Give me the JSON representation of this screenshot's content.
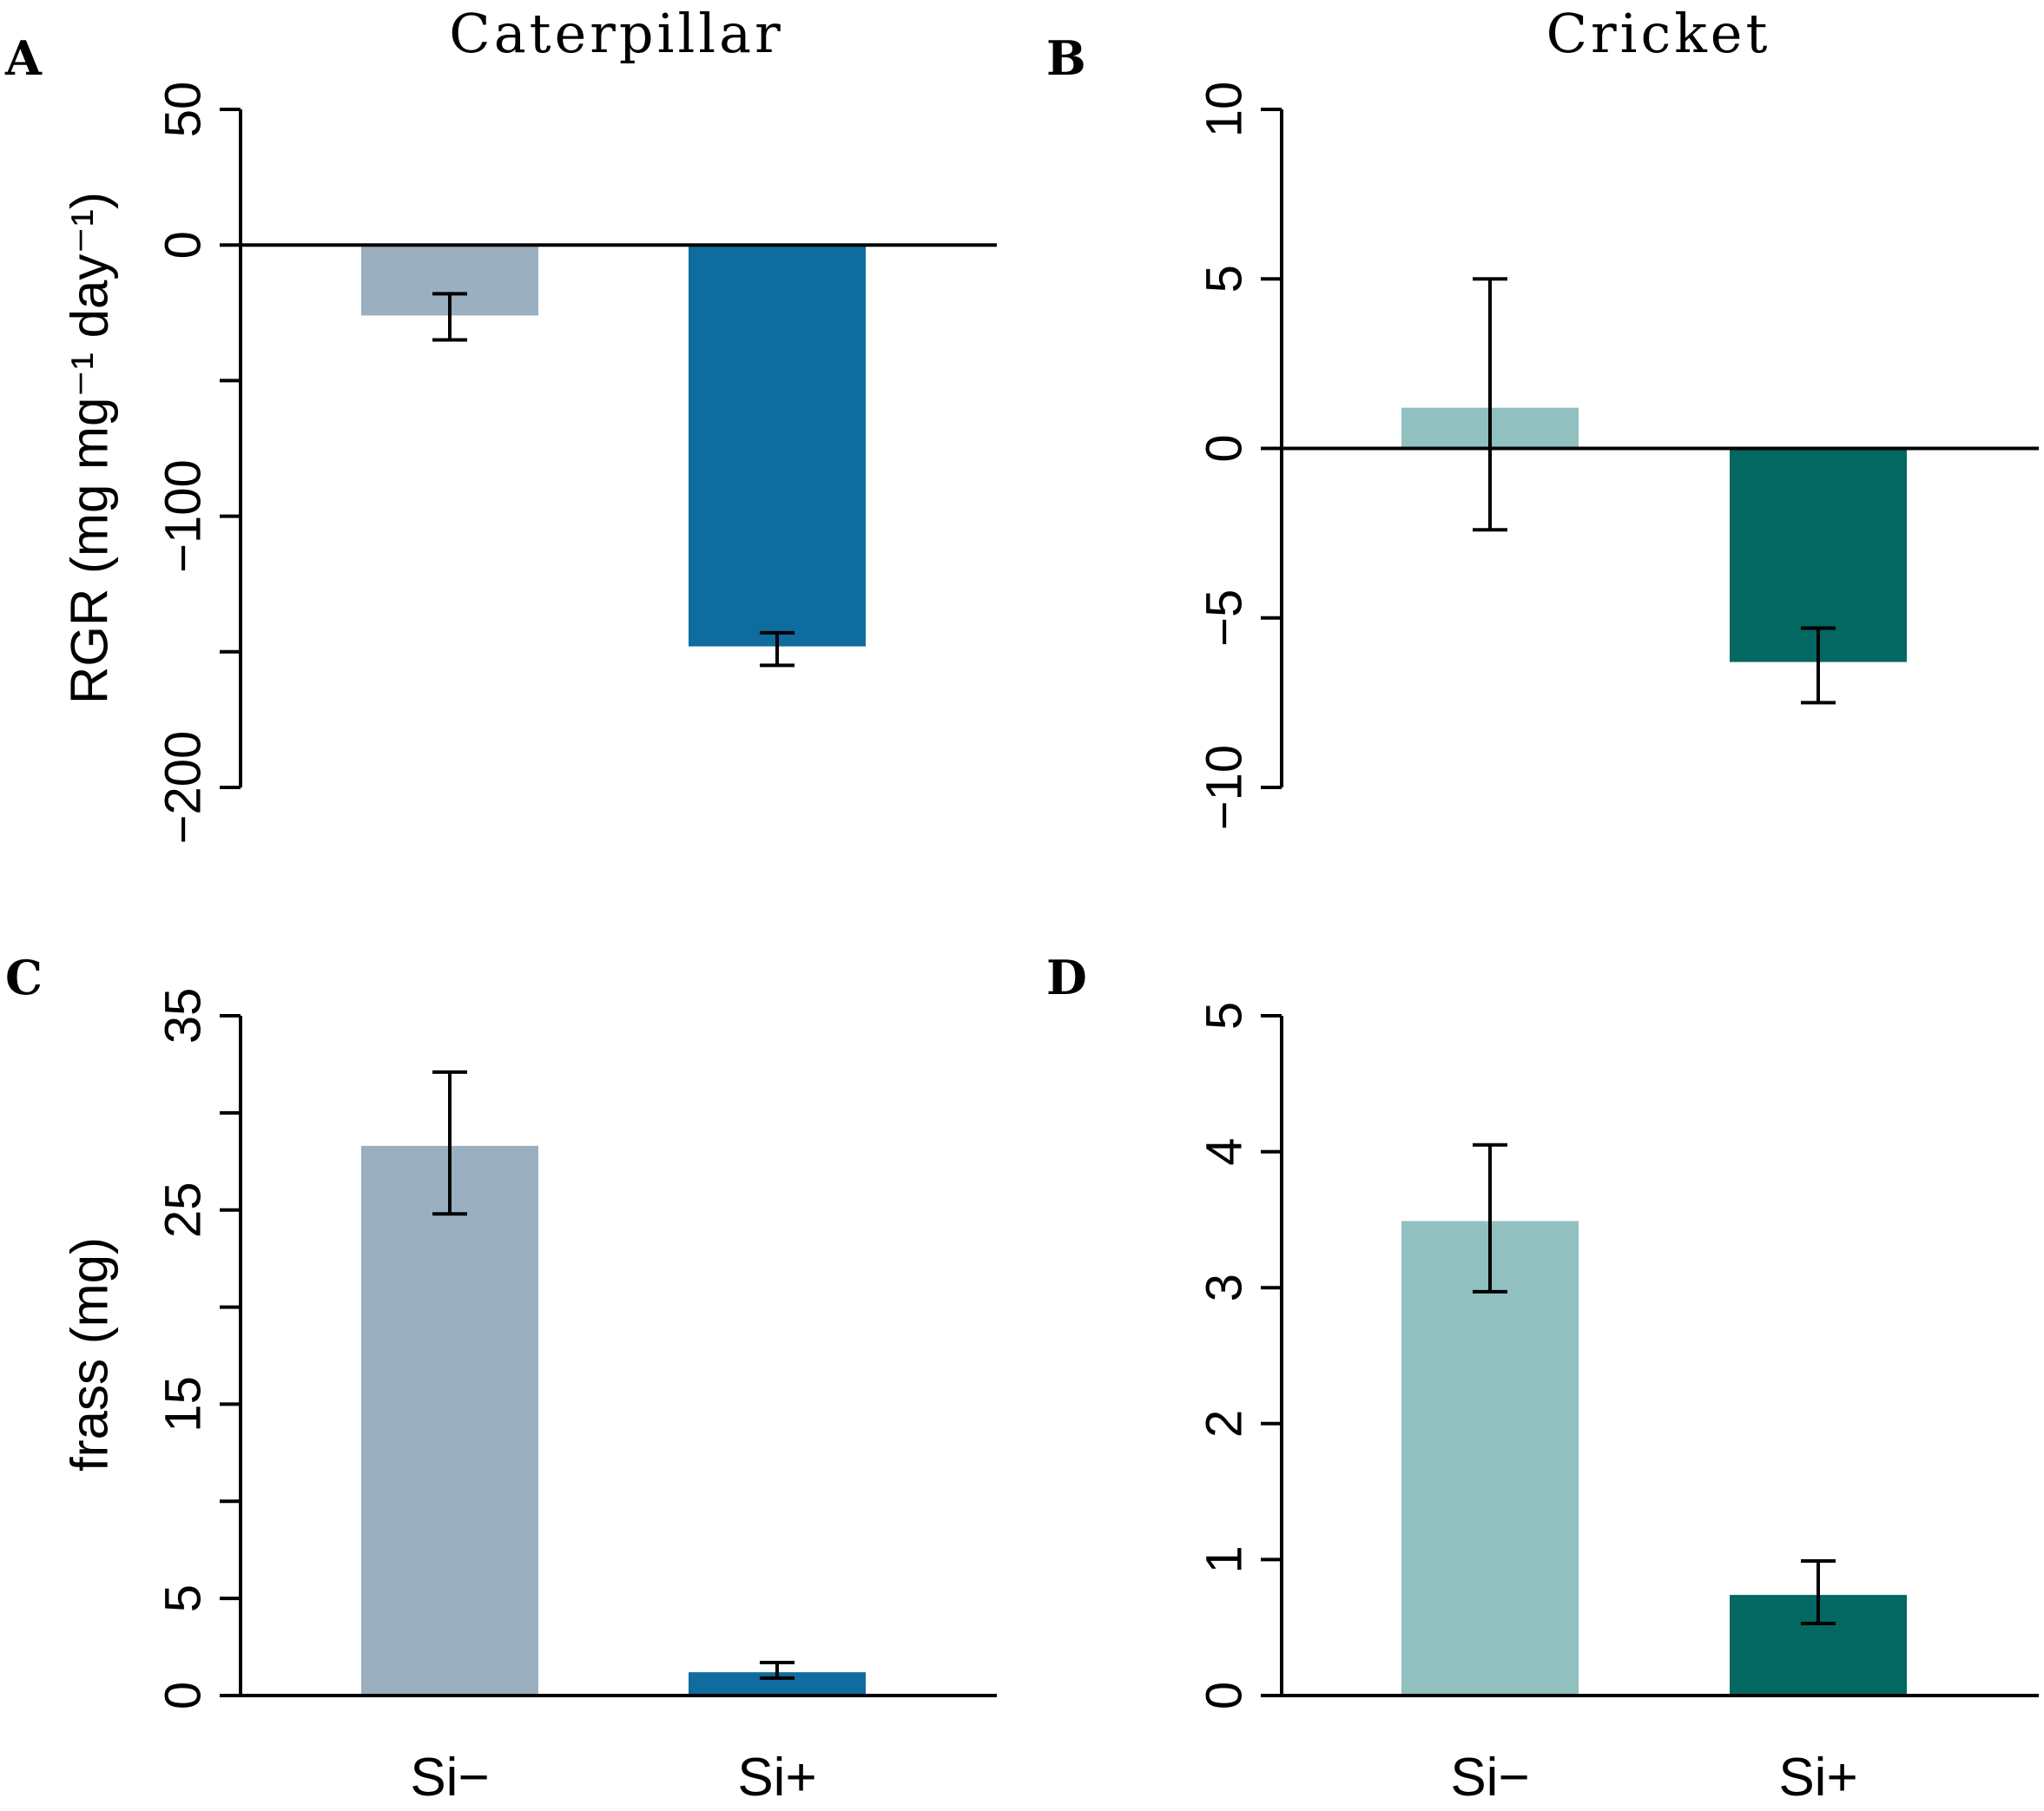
{
  "chart_data": [
    {
      "panel": "A",
      "type": "bar",
      "title": "Caterpillar",
      "categories": [
        "Si−",
        "Si+"
      ],
      "values": [
        -26,
        -148
      ],
      "errors": [
        [
          -18,
          -35
        ],
        [
          -143,
          -155
        ]
      ],
      "colors": [
        "#9aafbf",
        "#0f6c9e"
      ],
      "ylabel": "RGR (mg mg⁻¹ day⁻¹)",
      "ylim": [
        -200,
        50
      ],
      "yticks": [
        50,
        0,
        -50,
        -100,
        -150,
        -200
      ],
      "ytick_labels": [
        "50",
        "0",
        "",
        "−100",
        "",
        "−200"
      ],
      "zero_line": true,
      "show_xlabels": false
    },
    {
      "panel": "B",
      "type": "bar",
      "title": "Cricket",
      "categories": [
        "Si−",
        "Si+"
      ],
      "values": [
        1.2,
        -6.3
      ],
      "errors": [
        [
          5.0,
          -2.4
        ],
        [
          -5.3,
          -7.5
        ]
      ],
      "colors": [
        "#91c0c0",
        "#036762"
      ],
      "ylabel": "",
      "ylim": [
        -10,
        10
      ],
      "yticks": [
        10,
        5,
        0,
        -5,
        -10
      ],
      "ytick_labels": [
        "10",
        "5",
        "0",
        "−5",
        "−10"
      ],
      "zero_line": true,
      "show_xlabels": false
    },
    {
      "panel": "C",
      "type": "bar",
      "title": "",
      "categories": [
        "Si−",
        "Si+"
      ],
      "values": [
        28.3,
        1.2
      ],
      "errors": [
        [
          32.1,
          24.8
        ],
        [
          1.7,
          0.9
        ]
      ],
      "colors": [
        "#9aafbf",
        "#0f6c9e"
      ],
      "ylabel": "frass (mg)",
      "ylim": [
        0,
        35
      ],
      "yticks": [
        35,
        30,
        25,
        20,
        15,
        10,
        5,
        0
      ],
      "ytick_labels": [
        "35",
        "",
        "25",
        "",
        "15",
        "",
        "5",
        "0"
      ],
      "zero_line": false,
      "show_xlabels": true
    },
    {
      "panel": "D",
      "type": "bar",
      "title": "",
      "categories": [
        "Si−",
        "Si+"
      ],
      "values": [
        3.49,
        0.74
      ],
      "errors": [
        [
          4.05,
          2.97
        ],
        [
          0.99,
          0.53
        ]
      ],
      "colors": [
        "#91c0c0",
        "#036762"
      ],
      "ylabel": "",
      "ylim": [
        0,
        5
      ],
      "yticks": [
        5,
        4,
        3,
        2,
        1,
        0
      ],
      "ytick_labels": [
        "5",
        "4",
        "3",
        "2",
        "1",
        "0"
      ],
      "zero_line": false,
      "show_xlabels": true
    }
  ]
}
